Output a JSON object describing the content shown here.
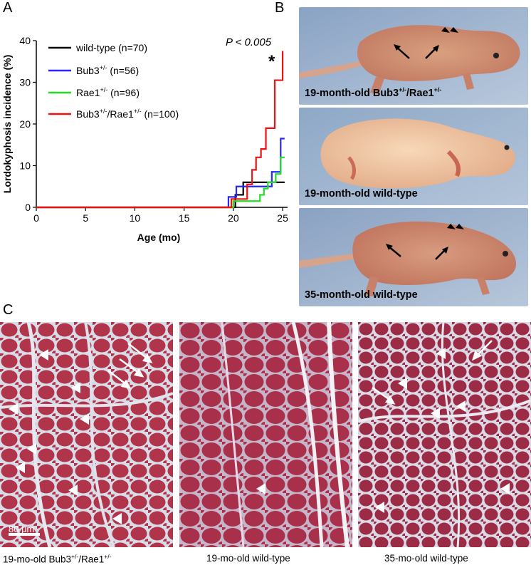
{
  "panels": {
    "a": "A",
    "b": "B",
    "c": "C"
  },
  "chart_data": {
    "type": "line",
    "step": true,
    "ylabel": "Lordokyphosis incidence (%)",
    "xlabel": "Age (mo)",
    "xlim": [
      0,
      25.5
    ],
    "ylim": [
      0,
      40
    ],
    "xticks": [
      0,
      5,
      10,
      15,
      20,
      25
    ],
    "yticks": [
      0,
      10,
      20,
      30,
      40
    ],
    "annotation": "P < 0.005",
    "significance_mark": "*",
    "legend_position": "top-left",
    "series": [
      {
        "name": "wild-type (n=70)",
        "color": "#000000",
        "x": [
          0,
          20.2,
          21.0,
          25.2
        ],
        "y": [
          0,
          3,
          6,
          6
        ]
      },
      {
        "name": "Bub3+/- (n=56)",
        "color": "#2626ff",
        "x": [
          0,
          19.5,
          20.3,
          22.9,
          23.9,
          24.8,
          25.2
        ],
        "y": [
          0,
          2.5,
          5,
          5,
          8.5,
          16.5,
          16.5
        ]
      },
      {
        "name": "Rae1+/- (n=96)",
        "color": "#22dd22",
        "x": [
          0,
          20.0,
          22.7,
          23.1,
          23.5,
          24.3,
          24.8,
          25.2
        ],
        "y": [
          0,
          1.5,
          3,
          4.5,
          6,
          8,
          12,
          12
        ]
      },
      {
        "name": "Bub3+/-/Rae1+/- (n=100)",
        "color": "#ee1111",
        "x": [
          0,
          19.8,
          21.4,
          21.9,
          22.3,
          22.8,
          23.3,
          24.2,
          25.0
        ],
        "y": [
          0,
          2,
          5.5,
          9,
          12,
          14,
          19,
          30.5,
          37.5
        ]
      }
    ]
  },
  "legend_labels": {
    "s1": {
      "base": "wild-type (n=70)"
    },
    "s2": {
      "base": "Bub3",
      "sup": "+/-",
      "rest": " (n=56)"
    },
    "s3": {
      "base": "Rae1",
      "sup": "+/-",
      "rest": " (n=96)"
    },
    "s4": {
      "base": "Bub3",
      "sup": "+/-",
      "mid": "/Rae1",
      "sup2": "+/-",
      "rest": " (n=100)"
    }
  },
  "photos": [
    {
      "caption_base": "19-month-old Bub3",
      "sup": "+/-",
      "mid": "/Rae1",
      "sup2": "+/-"
    },
    {
      "caption_base": "19-month-old wild-type"
    },
    {
      "caption_base": "35-month-old wild-type"
    }
  ],
  "histology": {
    "captions": [
      {
        "base": "19-mo-old Bub3",
        "sup": "+/-",
        "mid": "/Rae1",
        "sup2": "+/-"
      },
      {
        "base": "19-mo-old wild-type"
      },
      {
        "base": "35-mo-old wild-type"
      }
    ],
    "scale_bar": "80 μm"
  }
}
